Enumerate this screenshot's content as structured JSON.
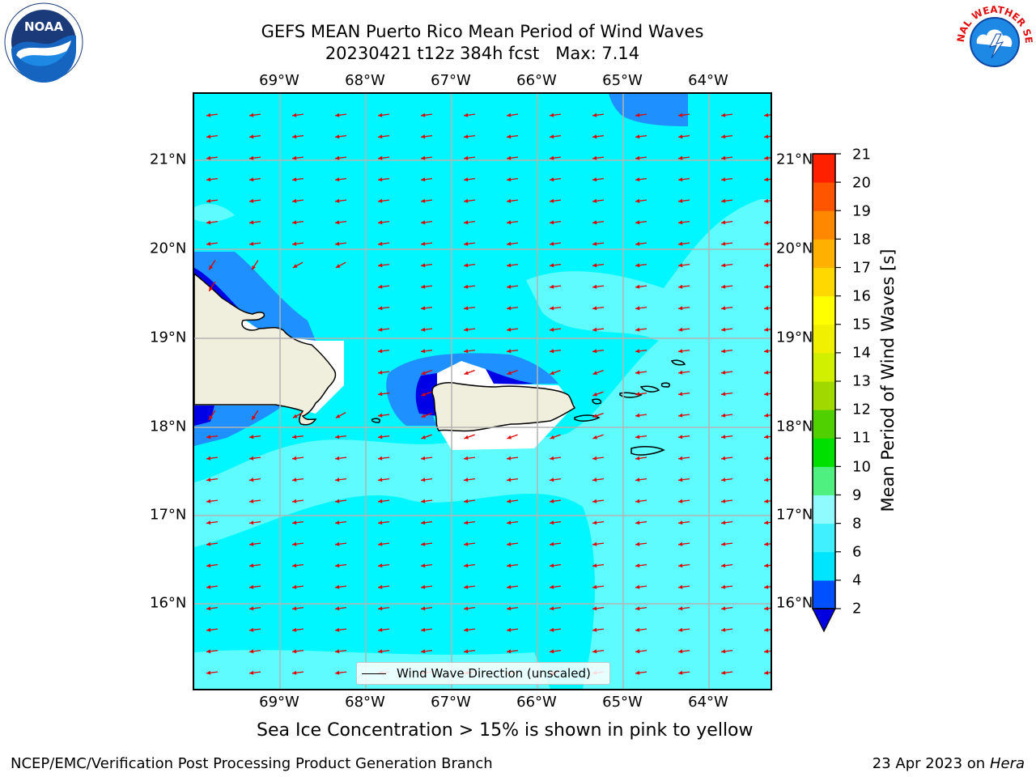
{
  "title_line1": "GEFS MEAN Puerto Rico Mean Period of Wind Waves",
  "title_line2": "20230421 t12z 384h fcst   Max: 7.14",
  "lon_labels": [
    "69°W",
    "68°W",
    "67°W",
    "66°W",
    "65°W",
    "64°W"
  ],
  "lat_labels": [
    "21°N",
    "20°N",
    "19°N",
    "18°N",
    "17°N",
    "16°N"
  ],
  "legend_label": "Wind Wave Direction (unscaled)",
  "colorbar": {
    "title": "Mean Period of Wind Waves [s]",
    "ticks": [
      "2",
      "4",
      "6",
      "8",
      "9",
      "10",
      "11",
      "12",
      "13",
      "14",
      "15",
      "16",
      "17",
      "18",
      "19",
      "20",
      "21"
    ],
    "colors": [
      "#0050ff",
      "#00e5ff",
      "#40f0ff",
      "#90fbff",
      "#50f080",
      "#00e000",
      "#50d000",
      "#a0d800",
      "#d0f000",
      "#f0f000",
      "#ffff00",
      "#ffd800",
      "#ffb000",
      "#ff8800",
      "#ff5500",
      "#ff2000",
      "#ff0000"
    ],
    "under_color": "#0000e0"
  },
  "map_colors": {
    "ocean_6_8": "#00f7ff",
    "ocean_8_9": "#5ffcff",
    "band_2_4": "#1e90ff",
    "band_under_2": "#0000e6",
    "land": "#f0eedc",
    "arrow": "#e00000",
    "grid": "#b4b4b4"
  },
  "subtitle": "Sea Ice Concentration > 15% is shown in pink to yellow",
  "footer_left": "NCEP/EMC/Verification Post Processing Product Generation Branch",
  "footer_date": "23 Apr 2023 on",
  "footer_host": "Hera",
  "logos": {
    "left": "NOAA",
    "right": "NATIONAL WEATHER SERVICE"
  }
}
